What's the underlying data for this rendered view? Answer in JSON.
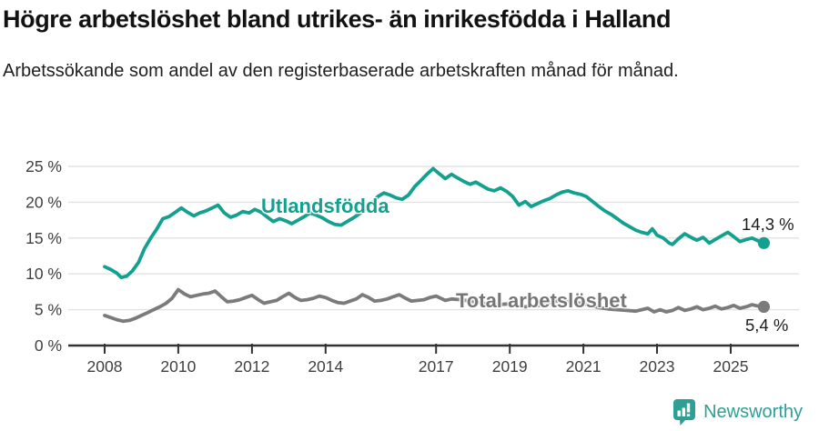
{
  "chart_data": {
    "type": "line",
    "title": "Högre arbetslöshet bland utrikes- än inrikesfödda i Halland",
    "subtitle": "Arbetssökande som andel av den registerbaserade arbetskraften månad för månad.",
    "xlabel": "",
    "ylabel": "",
    "unit": "%",
    "grid": true,
    "legend_position": "inline-labels",
    "xlim": [
      2007.5,
      2026.3
    ],
    "ylim": [
      0,
      25
    ],
    "y_ticks": [
      {
        "value": 0,
        "label": "0 %"
      },
      {
        "value": 5,
        "label": "5 %"
      },
      {
        "value": 10,
        "label": "10 %"
      },
      {
        "value": 15,
        "label": "15 %"
      },
      {
        "value": 20,
        "label": "20 %"
      },
      {
        "value": 25,
        "label": "25 %"
      }
    ],
    "x_ticks": [
      {
        "value": 2008,
        "label": "2008"
      },
      {
        "value": 2010,
        "label": "2010"
      },
      {
        "value": 2012,
        "label": "2012"
      },
      {
        "value": 2014,
        "label": "2014"
      },
      {
        "value": 2017,
        "label": "2017"
      },
      {
        "value": 2019,
        "label": "2019"
      },
      {
        "value": 2021,
        "label": "2021"
      },
      {
        "value": 2023,
        "label": "2023"
      },
      {
        "value": 2025,
        "label": "2025"
      }
    ],
    "series": [
      {
        "name": "Utlandsfödda",
        "color": "#13a08f",
        "end_label": "14,3 %",
        "end_value": 14.3,
        "points": [
          [
            2008.0,
            11.0
          ],
          [
            2008.17,
            10.6
          ],
          [
            2008.33,
            10.1
          ],
          [
            2008.45,
            9.5
          ],
          [
            2008.6,
            9.7
          ],
          [
            2008.75,
            10.4
          ],
          [
            2008.92,
            11.6
          ],
          [
            2009.08,
            13.5
          ],
          [
            2009.25,
            15.0
          ],
          [
            2009.42,
            16.3
          ],
          [
            2009.58,
            17.7
          ],
          [
            2009.75,
            18.0
          ],
          [
            2009.92,
            18.6
          ],
          [
            2010.08,
            19.2
          ],
          [
            2010.25,
            18.6
          ],
          [
            2010.42,
            18.1
          ],
          [
            2010.58,
            18.5
          ],
          [
            2010.75,
            18.8
          ],
          [
            2010.92,
            19.2
          ],
          [
            2011.08,
            19.6
          ],
          [
            2011.25,
            18.5
          ],
          [
            2011.42,
            17.9
          ],
          [
            2011.58,
            18.2
          ],
          [
            2011.75,
            18.7
          ],
          [
            2011.92,
            18.5
          ],
          [
            2012.08,
            19.0
          ],
          [
            2012.25,
            18.6
          ],
          [
            2012.42,
            17.9
          ],
          [
            2012.58,
            17.3
          ],
          [
            2012.75,
            17.7
          ],
          [
            2012.92,
            17.4
          ],
          [
            2013.08,
            17.0
          ],
          [
            2013.25,
            17.5
          ],
          [
            2013.42,
            18.0
          ],
          [
            2013.58,
            18.5
          ],
          [
            2013.75,
            18.2
          ],
          [
            2013.92,
            17.8
          ],
          [
            2014.08,
            17.3
          ],
          [
            2014.25,
            16.9
          ],
          [
            2014.42,
            16.8
          ],
          [
            2014.58,
            17.3
          ],
          [
            2014.75,
            17.8
          ],
          [
            2014.92,
            18.4
          ],
          [
            2015.08,
            19.1
          ],
          [
            2015.25,
            19.8
          ],
          [
            2015.42,
            20.8
          ],
          [
            2015.58,
            21.3
          ],
          [
            2015.75,
            21.0
          ],
          [
            2015.92,
            20.6
          ],
          [
            2016.08,
            20.4
          ],
          [
            2016.25,
            21.0
          ],
          [
            2016.42,
            22.2
          ],
          [
            2016.58,
            23.0
          ],
          [
            2016.75,
            23.9
          ],
          [
            2016.92,
            24.7
          ],
          [
            2017.08,
            24.0
          ],
          [
            2017.25,
            23.3
          ],
          [
            2017.42,
            23.9
          ],
          [
            2017.58,
            23.4
          ],
          [
            2017.75,
            22.9
          ],
          [
            2017.92,
            22.5
          ],
          [
            2018.08,
            22.8
          ],
          [
            2018.25,
            22.3
          ],
          [
            2018.42,
            21.8
          ],
          [
            2018.58,
            21.6
          ],
          [
            2018.75,
            22.0
          ],
          [
            2018.92,
            21.5
          ],
          [
            2019.08,
            20.8
          ],
          [
            2019.25,
            19.6
          ],
          [
            2019.42,
            20.1
          ],
          [
            2019.58,
            19.4
          ],
          [
            2019.75,
            19.8
          ],
          [
            2019.92,
            20.2
          ],
          [
            2020.08,
            20.5
          ],
          [
            2020.25,
            21.0
          ],
          [
            2020.42,
            21.4
          ],
          [
            2020.58,
            21.6
          ],
          [
            2020.75,
            21.3
          ],
          [
            2020.92,
            21.1
          ],
          [
            2021.08,
            20.8
          ],
          [
            2021.25,
            20.1
          ],
          [
            2021.42,
            19.4
          ],
          [
            2021.58,
            18.8
          ],
          [
            2021.75,
            18.3
          ],
          [
            2021.92,
            17.7
          ],
          [
            2022.08,
            17.1
          ],
          [
            2022.25,
            16.6
          ],
          [
            2022.42,
            16.1
          ],
          [
            2022.58,
            15.8
          ],
          [
            2022.75,
            15.6
          ],
          [
            2022.87,
            16.3
          ],
          [
            2023.0,
            15.4
          ],
          [
            2023.17,
            15.0
          ],
          [
            2023.33,
            14.3
          ],
          [
            2023.42,
            14.1
          ],
          [
            2023.58,
            14.9
          ],
          [
            2023.75,
            15.6
          ],
          [
            2023.92,
            15.1
          ],
          [
            2024.08,
            14.7
          ],
          [
            2024.25,
            15.1
          ],
          [
            2024.42,
            14.3
          ],
          [
            2024.58,
            14.8
          ],
          [
            2024.75,
            15.3
          ],
          [
            2024.92,
            15.8
          ],
          [
            2025.08,
            15.2
          ],
          [
            2025.25,
            14.5
          ],
          [
            2025.42,
            14.8
          ],
          [
            2025.58,
            15.0
          ],
          [
            2025.75,
            14.6
          ],
          [
            2025.9,
            14.3
          ]
        ]
      },
      {
        "name": "Total arbetslöshet",
        "color": "#7b7b7b",
        "end_label": "5,4 %",
        "end_value": 5.4,
        "points": [
          [
            2008.0,
            4.2
          ],
          [
            2008.17,
            3.9
          ],
          [
            2008.33,
            3.6
          ],
          [
            2008.5,
            3.4
          ],
          [
            2008.67,
            3.5
          ],
          [
            2008.83,
            3.8
          ],
          [
            2009.0,
            4.2
          ],
          [
            2009.17,
            4.6
          ],
          [
            2009.33,
            5.0
          ],
          [
            2009.5,
            5.4
          ],
          [
            2009.67,
            5.9
          ],
          [
            2009.83,
            6.6
          ],
          [
            2010.0,
            7.8
          ],
          [
            2010.17,
            7.2
          ],
          [
            2010.33,
            6.8
          ],
          [
            2010.5,
            7.0
          ],
          [
            2010.67,
            7.2
          ],
          [
            2010.83,
            7.3
          ],
          [
            2011.0,
            7.6
          ],
          [
            2011.17,
            6.8
          ],
          [
            2011.33,
            6.1
          ],
          [
            2011.5,
            6.2
          ],
          [
            2011.67,
            6.4
          ],
          [
            2011.83,
            6.7
          ],
          [
            2012.0,
            7.0
          ],
          [
            2012.17,
            6.4
          ],
          [
            2012.33,
            5.9
          ],
          [
            2012.5,
            6.1
          ],
          [
            2012.67,
            6.3
          ],
          [
            2012.83,
            6.8
          ],
          [
            2013.0,
            7.3
          ],
          [
            2013.17,
            6.7
          ],
          [
            2013.33,
            6.3
          ],
          [
            2013.5,
            6.4
          ],
          [
            2013.67,
            6.6
          ],
          [
            2013.83,
            6.9
          ],
          [
            2014.0,
            6.7
          ],
          [
            2014.17,
            6.3
          ],
          [
            2014.33,
            6.0
          ],
          [
            2014.5,
            5.9
          ],
          [
            2014.67,
            6.2
          ],
          [
            2014.83,
            6.5
          ],
          [
            2015.0,
            7.1
          ],
          [
            2015.17,
            6.7
          ],
          [
            2015.33,
            6.2
          ],
          [
            2015.5,
            6.3
          ],
          [
            2015.67,
            6.5
          ],
          [
            2015.83,
            6.8
          ],
          [
            2016.0,
            7.1
          ],
          [
            2016.17,
            6.6
          ],
          [
            2016.33,
            6.2
          ],
          [
            2016.5,
            6.3
          ],
          [
            2016.67,
            6.4
          ],
          [
            2016.83,
            6.7
          ],
          [
            2017.0,
            6.9
          ],
          [
            2017.17,
            6.5
          ],
          [
            2017.25,
            6.3
          ],
          [
            2017.42,
            6.5
          ],
          [
            2017.67,
            6.4
          ],
          [
            2017.92,
            6.2
          ],
          [
            2018.17,
            6.0
          ],
          [
            2018.42,
            5.8
          ],
          [
            2018.67,
            5.7
          ],
          [
            2018.92,
            5.8
          ],
          [
            2019.17,
            5.5
          ],
          [
            2019.42,
            5.4
          ],
          [
            2019.67,
            5.5
          ],
          [
            2019.92,
            5.7
          ],
          [
            2020.17,
            6.1
          ],
          [
            2020.42,
            6.3
          ],
          [
            2020.67,
            6.1
          ],
          [
            2020.92,
            5.9
          ],
          [
            2021.17,
            5.6
          ],
          [
            2021.42,
            5.3
          ],
          [
            2021.67,
            5.1
          ],
          [
            2021.92,
            5.0
          ],
          [
            2022.17,
            4.9
          ],
          [
            2022.42,
            4.8
          ],
          [
            2022.58,
            5.0
          ],
          [
            2022.75,
            5.2
          ],
          [
            2022.92,
            4.7
          ],
          [
            2023.08,
            5.0
          ],
          [
            2023.25,
            4.7
          ],
          [
            2023.42,
            4.9
          ],
          [
            2023.58,
            5.3
          ],
          [
            2023.75,
            4.9
          ],
          [
            2023.92,
            5.1
          ],
          [
            2024.08,
            5.4
          ],
          [
            2024.25,
            5.0
          ],
          [
            2024.42,
            5.2
          ],
          [
            2024.58,
            5.5
          ],
          [
            2024.75,
            5.1
          ],
          [
            2024.92,
            5.3
          ],
          [
            2025.08,
            5.6
          ],
          [
            2025.25,
            5.2
          ],
          [
            2025.42,
            5.4
          ],
          [
            2025.58,
            5.7
          ],
          [
            2025.75,
            5.5
          ],
          [
            2025.9,
            5.4
          ]
        ]
      }
    ]
  },
  "colors": {
    "accent_teal": "#13a08f",
    "line_gray": "#7b7b7b",
    "label_gray": "#767676",
    "axis": "#333333",
    "grid": "#e2e2e2",
    "tick_text": "#404040",
    "end_label_text": "#1c1c1c",
    "brand_teal": "#2f9f95"
  },
  "footer": {
    "brand": "Newsworthy"
  }
}
